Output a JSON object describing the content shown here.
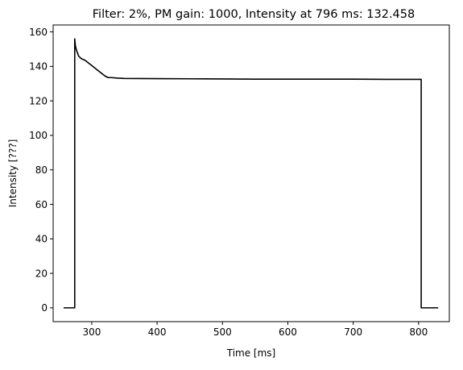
{
  "chart_data": {
    "type": "line",
    "title": "Filter: 2%, PM gain: 1000, Intensity at 796 ms: 132.458",
    "xlabel": "Time [ms]",
    "ylabel": "Intensity [???]",
    "xlim": [
      241,
      847
    ],
    "ylim": [
      -8,
      164
    ],
    "xticks": [
      300,
      400,
      500,
      600,
      700,
      800
    ],
    "xtick_labels": [
      "300",
      "400",
      "500",
      "600",
      "700",
      "800"
    ],
    "yticks": [
      0,
      20,
      40,
      60,
      80,
      100,
      120,
      140,
      160
    ],
    "ytick_labels": [
      "0",
      "20",
      "40",
      "60",
      "80",
      "100",
      "120",
      "140",
      "160"
    ],
    "grid": false,
    "line_color": "#000000",
    "series": [
      {
        "x": [
          257,
          274,
          274,
          275,
          277,
          280,
          284,
          290,
          295,
          300,
          305,
          310,
          315,
          320,
          325,
          330,
          340,
          350,
          400,
          450,
          500,
          550,
          600,
          650,
          700,
          750,
          790,
          804,
          804,
          820,
          830
        ],
        "y": [
          0,
          0,
          156,
          152,
          149,
          146,
          144.5,
          143.5,
          142,
          140.5,
          139,
          137.5,
          136,
          134.5,
          133.5,
          133.5,
          133.2,
          133,
          132.9,
          132.8,
          132.7,
          132.6,
          132.6,
          132.6,
          132.6,
          132.5,
          132.5,
          132.5,
          0,
          0,
          0
        ]
      }
    ]
  }
}
